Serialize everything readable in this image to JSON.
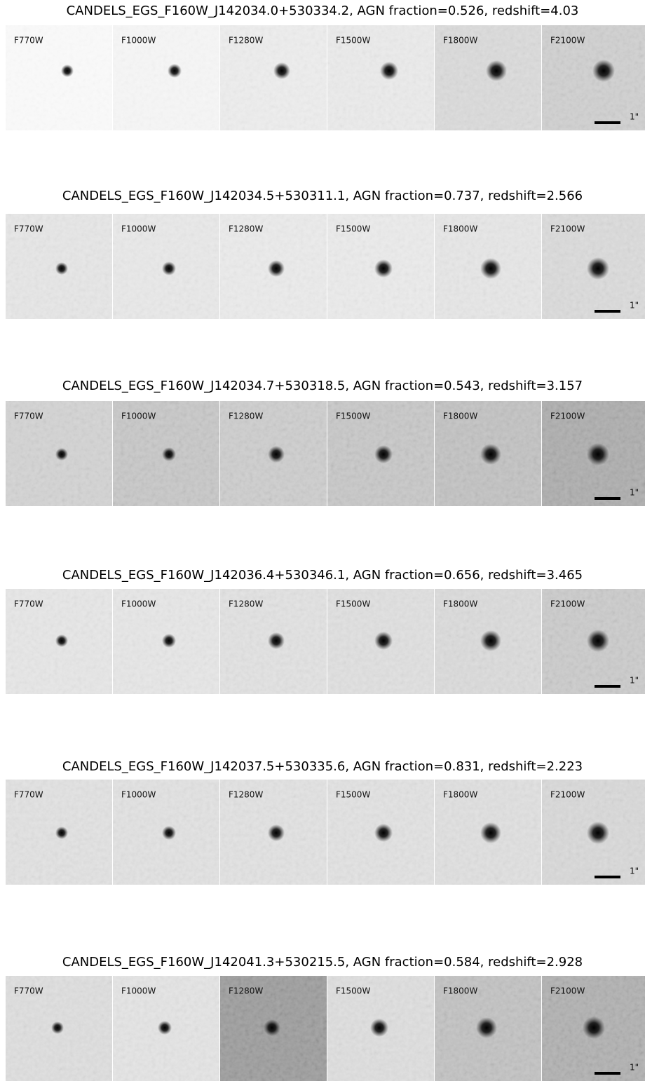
{
  "figure": {
    "rows": [
      {
        "title": "CANDELS_EGS_F160W_J142034.0+530334.2, AGN fraction=0.526, redshift=4.03",
        "panels": [
          "F770W",
          "F1000W",
          "F1280W",
          "F1500W",
          "F1800W",
          "F2100W"
        ],
        "scale_label": "1\""
      },
      {
        "title": "CANDELS_EGS_F160W_J142034.5+530311.1, AGN fraction=0.737, redshift=2.566",
        "panels": [
          "F770W",
          "F1000W",
          "F1280W",
          "F1500W",
          "F1800W",
          "F2100W"
        ],
        "scale_label": "1\""
      },
      {
        "title": "CANDELS_EGS_F160W_J142034.7+530318.5, AGN fraction=0.543, redshift=3.157",
        "panels": [
          "F770W",
          "F1000W",
          "F1280W",
          "F1500W",
          "F1800W",
          "F2100W"
        ],
        "scale_label": "1\""
      },
      {
        "title": "CANDELS_EGS_F160W_J142036.4+530346.1, AGN fraction=0.656, redshift=3.465",
        "panels": [
          "F770W",
          "F1000W",
          "F1280W",
          "F1500W",
          "F1800W",
          "F2100W"
        ],
        "scale_label": "1\""
      },
      {
        "title": "CANDELS_EGS_F160W_J142037.5+530335.6, AGN fraction=0.831, redshift=2.223",
        "panels": [
          "F770W",
          "F1000W",
          "F1280W",
          "F1500W",
          "F1800W",
          "F2100W"
        ],
        "scale_label": "1\""
      },
      {
        "title": "CANDELS_EGS_F160W_J142041.3+530215.5, AGN fraction=0.584, redshift=2.928",
        "panels": [
          "F770W",
          "F1000W",
          "F1280W",
          "F1500W",
          "F1800W",
          "F2100W"
        ],
        "scale_label": "1\""
      }
    ]
  }
}
